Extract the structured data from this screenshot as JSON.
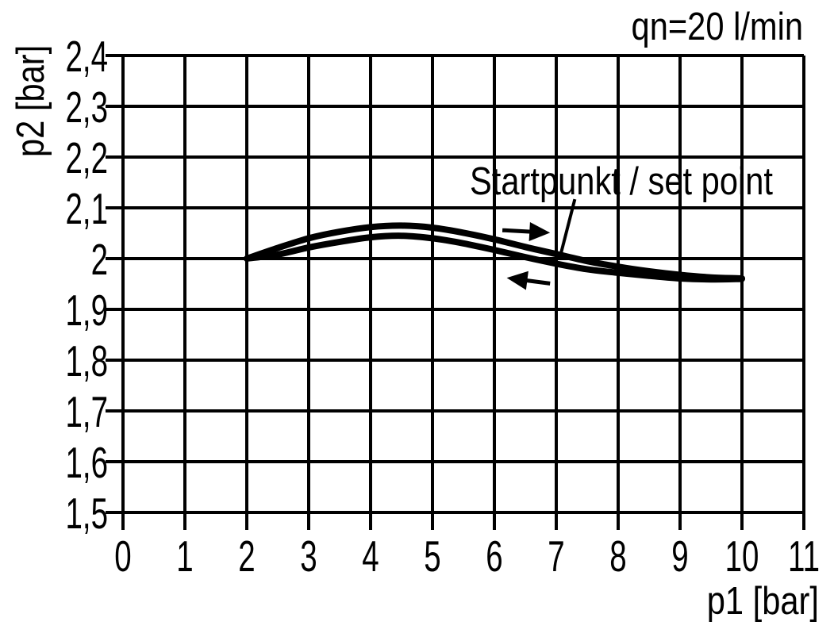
{
  "chart_data": {
    "type": "line",
    "xlabel": "p1 [bar]",
    "ylabel": "p2 [bar]",
    "annotations": {
      "flow_rate": "qn=20 l/min",
      "set_point": "Startpunkt / set point"
    },
    "xlim": [
      0,
      11
    ],
    "ylim": [
      1.5,
      2.4
    ],
    "x_ticks": {
      "values": [
        0,
        1,
        2,
        3,
        4,
        5,
        6,
        7,
        8,
        9,
        10,
        11
      ],
      "labels": [
        "0",
        "1",
        "2",
        "3",
        "4",
        "5",
        "6",
        "7",
        "8",
        "9",
        "10",
        "11"
      ]
    },
    "y_ticks": {
      "values": [
        2.4,
        2.3,
        2.2,
        2.1,
        2.0,
        1.9,
        1.8,
        1.7,
        1.6,
        1.5
      ],
      "labels": [
        "2,4",
        "2,3",
        "2,2",
        "2,1",
        "2",
        "1,9",
        "1,8",
        "1,7",
        "1,6",
        "1,5"
      ]
    },
    "grid": true,
    "legend": "none",
    "line_color": "#000000",
    "background": "#ffffff",
    "x": [
      2,
      2.5,
      3,
      3.5,
      4,
      4.5,
      5,
      5.5,
      6,
      6.5,
      7,
      7.5,
      8,
      8.5,
      9,
      9.5,
      10
    ],
    "series": [
      {
        "name": "upper hysteresis branch (arrow right)",
        "values": [
          2.0,
          2.021,
          2.04,
          2.053,
          2.062,
          2.065,
          2.061,
          2.051,
          2.038,
          2.023,
          2.009,
          1.995,
          1.984,
          1.975,
          1.968,
          1.963,
          1.961
        ]
      },
      {
        "name": "lower hysteresis branch (arrow left)",
        "values": [
          2.0,
          2.008,
          2.022,
          2.033,
          2.042,
          2.045,
          2.04,
          2.03,
          2.017,
          2.003,
          1.99,
          1.979,
          1.972,
          1.966,
          1.961,
          1.959,
          1.96
        ]
      }
    ],
    "set_point": {
      "p1": 7.0,
      "p2": 2.0
    },
    "arrows": [
      {
        "direction": "right",
        "from": [
          6.13,
          2.056
        ],
        "to": [
          6.9,
          2.051
        ]
      },
      {
        "direction": "left",
        "from": [
          6.9,
          1.951
        ],
        "to": [
          6.2,
          1.962
        ]
      }
    ],
    "leader_line": {
      "from": [
        7.3,
        2.117
      ],
      "to": [
        7.05,
        1.998
      ]
    }
  }
}
